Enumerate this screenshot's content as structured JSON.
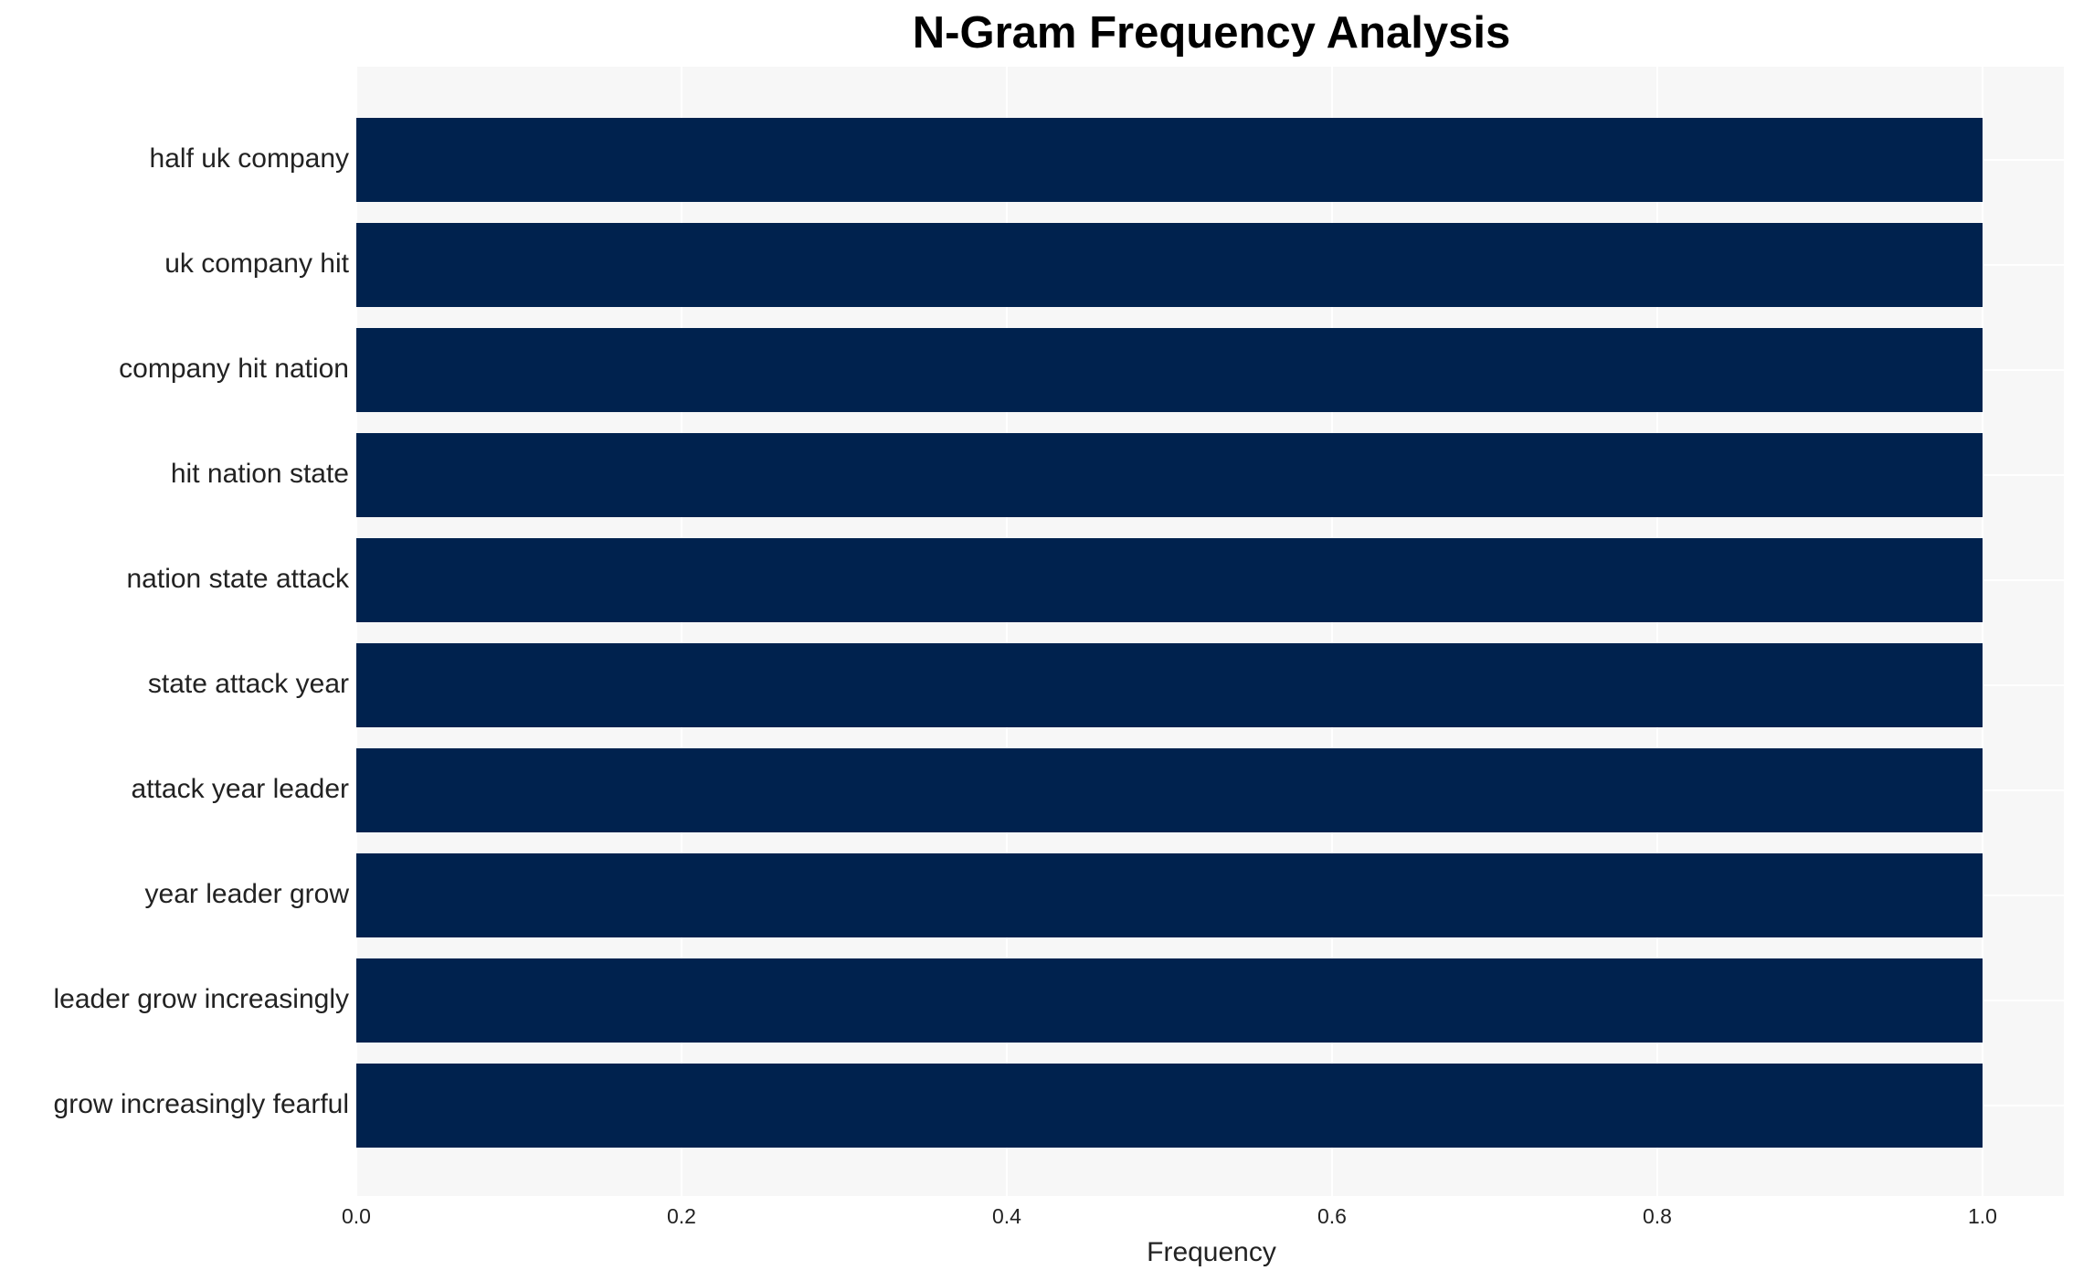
{
  "chart_data": {
    "type": "barh",
    "title": "N-Gram Frequency Analysis",
    "x_label": "Frequency",
    "categories": [
      "half uk company",
      "uk company hit",
      "company hit nation",
      "hit nation state",
      "nation state attack",
      "state attack year",
      "attack year leader",
      "year leader grow",
      "leader grow increasingly",
      "grow increasingly fearful"
    ],
    "values": [
      1,
      1,
      1,
      1,
      1,
      1,
      1,
      1,
      1,
      1
    ],
    "color": "#00224e",
    "xlim": [
      0,
      1.05
    ],
    "xticks": [
      {
        "value": 0,
        "label": "0.0"
      },
      0.2,
      0.4,
      0.6,
      0.8,
      {
        "value": 1,
        "label": "1.0"
      }
    ],
    "grid": true
  }
}
